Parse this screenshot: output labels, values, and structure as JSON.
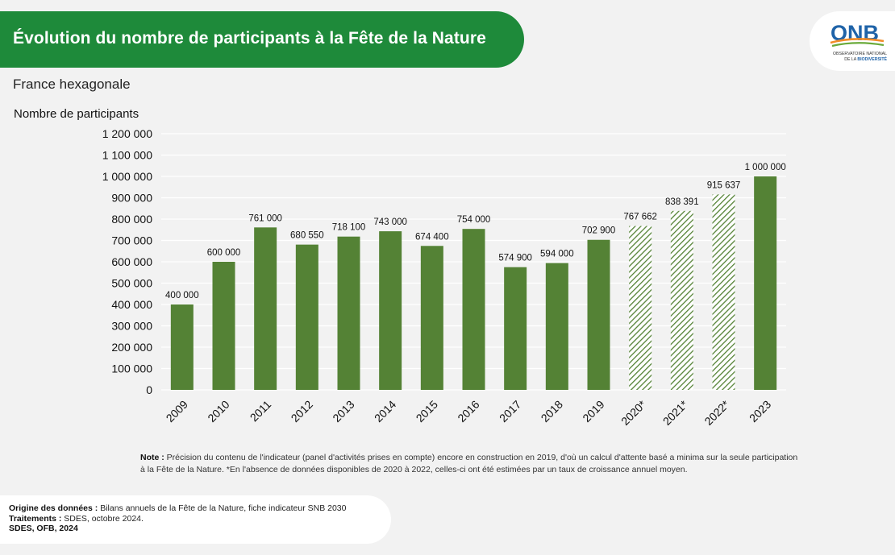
{
  "header": {
    "title": "Évolution du nombre de participants à la Fête de la Nature",
    "subtitle": "France hexagonale"
  },
  "logo": {
    "name": "ONB",
    "line1": "OBSERVATOIRE NATIONAL",
    "line2": "DE LA ",
    "line2_bold": "BIODIVERSITÉ",
    "colors": {
      "blue": "#1f63a8",
      "orange": "#f28c28",
      "green": "#6aaa3a"
    }
  },
  "chart_data": {
    "type": "bar",
    "ylabel": "Nombre de participants",
    "categories": [
      "2009",
      "2010",
      "2011",
      "2012",
      "2013",
      "2014",
      "2015",
      "2016",
      "2017",
      "2018",
      "2019",
      "2020*",
      "2021*",
      "2022*",
      "2023"
    ],
    "values": [
      400000,
      600000,
      761000,
      680550,
      718100,
      743000,
      674400,
      754000,
      574900,
      594000,
      702900,
      767662,
      838391,
      915637,
      1000000
    ],
    "value_labels": [
      "400 000",
      "600 000",
      "761 000",
      "680 550",
      "718 100",
      "743 000",
      "674 400",
      "754 000",
      "574 900",
      "594 000",
      "702 900",
      "767 662",
      "838 391",
      "915 637",
      "1 000 000"
    ],
    "estimated": [
      false,
      false,
      false,
      false,
      false,
      false,
      false,
      false,
      false,
      false,
      false,
      true,
      true,
      true,
      false
    ],
    "ylim": [
      0,
      1200000
    ],
    "yticks": [
      0,
      100000,
      200000,
      300000,
      400000,
      500000,
      600000,
      700000,
      800000,
      900000,
      1000000,
      1100000,
      1200000
    ],
    "ytick_labels": [
      "0",
      "100 000",
      "200 000",
      "300 000",
      "400 000",
      "500 000",
      "600 000",
      "700 000",
      "800 000",
      "900 000",
      "1 000 000",
      "1 100 000",
      "1 200 000"
    ],
    "grid": true,
    "colors": {
      "bar": "#548235",
      "hatch": "#548235",
      "grid": "#ffffff"
    }
  },
  "note": {
    "label": "Note :",
    "text": " Précision du contenu de l'indicateur (panel d'activités prises en compte) encore en construction en 2019, d'où un calcul d'attente basé a minima sur la seule participation à la Fête de la Nature. *En l'absence de données disponibles de 2020 à 2022, celles-ci ont été estimées par un taux de croissance annuel moyen."
  },
  "source": {
    "origin_label": "Origine des données :",
    "origin_text": " Bilans annuels de la Fête de la Nature, fiche indicateur SNB 2030",
    "treatment_label": "Traitements :",
    "treatment_text": " SDES, octobre 2024.",
    "credit": "SDES, OFB, 2024"
  }
}
